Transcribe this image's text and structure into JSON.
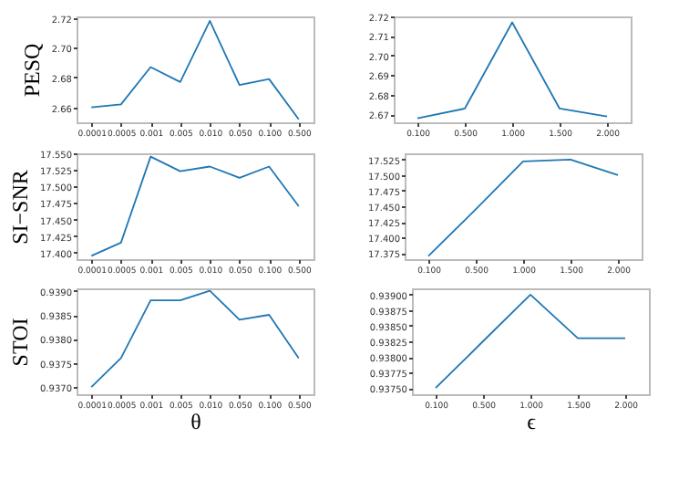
{
  "chart_data": [
    {
      "type": "line",
      "ylabel": "PESQ",
      "categories": [
        "0.0001",
        "0.0005",
        "0.001",
        "0.005",
        "0.010",
        "0.050",
        "0.100",
        "0.500"
      ],
      "series": [
        {
          "color": "#1f77b4",
          "values": [
            2.66,
            2.662,
            2.687,
            2.677,
            2.718,
            2.675,
            2.679,
            2.652
          ]
        }
      ],
      "ylim": [
        2.65,
        2.721
      ],
      "yticks": [
        2.66,
        2.68,
        {
          "value": 2.7,
          "label": "2.70"
        },
        2.72
      ],
      "grid": false
    },
    {
      "type": "line",
      "categories": [
        "0.100",
        "0.500",
        "1.000",
        "1.500",
        "2.000"
      ],
      "series": [
        {
          "color": "#1f77b4",
          "values": [
            2.668,
            2.673,
            2.717,
            2.673,
            2.669
          ]
        }
      ],
      "ylim": [
        2.666,
        2.72
      ],
      "yticks": [
        2.67,
        2.68,
        2.69,
        {
          "value": 2.7,
          "label": "2.70"
        },
        2.71,
        2.72
      ],
      "grid": false
    },
    {
      "type": "line",
      "ylabel": "SI−SNR",
      "categories": [
        "0.0001",
        "0.0005",
        "0.001",
        "0.005",
        "0.010",
        "0.050",
        "0.100",
        "0.500"
      ],
      "series": [
        {
          "color": "#1f77b4",
          "values": [
            17.395,
            17.415,
            17.545,
            17.523,
            17.53,
            17.513,
            17.53,
            17.47
          ]
        }
      ],
      "ylim": [
        17.39,
        17.55
      ],
      "yticks": [
        {
          "value": 17.4,
          "label": "17.400"
        },
        {
          "value": 17.425,
          "label": "17.425"
        },
        {
          "value": 17.45,
          "label": "17.450"
        },
        {
          "value": 17.475,
          "label": "17.475"
        },
        {
          "value": 17.5,
          "label": "17.500"
        },
        {
          "value": 17.525,
          "label": "17.525"
        },
        {
          "value": 17.55,
          "label": "17.550"
        }
      ],
      "grid": false
    },
    {
      "type": "line",
      "categories": [
        "0.100",
        "0.500",
        "1.000",
        "1.500",
        "2.000"
      ],
      "series": [
        {
          "color": "#1f77b4",
          "values": [
            17.37,
            17.445,
            17.522,
            17.525,
            17.5
          ]
        }
      ],
      "ylim": [
        17.365,
        17.535
      ],
      "yticks": [
        17.375,
        {
          "value": 17.4,
          "label": "17.400"
        },
        17.425,
        {
          "value": 17.45,
          "label": "17.450"
        },
        17.475,
        {
          "value": 17.5,
          "label": "17.500"
        },
        17.525
      ],
      "grid": false
    },
    {
      "type": "line",
      "ylabel": "STOI",
      "xlabel": "θ",
      "categories": [
        "0.0001",
        "0.0005",
        "0.001",
        "0.005",
        "0.010",
        "0.050",
        "0.100",
        "0.500"
      ],
      "series": [
        {
          "color": "#1f77b4",
          "values": [
            0.937,
            0.9376,
            0.9388,
            0.9388,
            0.939,
            0.9384,
            0.9385,
            0.9376
          ]
        }
      ],
      "ylim": [
        0.93685,
        0.93905
      ],
      "yticks": [
        {
          "value": 0.937,
          "label": "0.9370"
        },
        0.9375,
        {
          "value": 0.938,
          "label": "0.9380"
        },
        0.9385,
        {
          "value": 0.939,
          "label": "0.9390"
        }
      ],
      "grid": false
    },
    {
      "type": "line",
      "xlabel": "ϵ",
      "categories": [
        "0.100",
        "0.500",
        "1.000",
        "1.500",
        "2.000"
      ],
      "series": [
        {
          "color": "#1f77b4",
          "values": [
            0.9375,
            0.93825,
            0.939,
            0.9383,
            0.9383
          ]
        }
      ],
      "ylim": [
        0.9374,
        0.9391
      ],
      "yticks": [
        {
          "value": 0.9375,
          "label": "0.93750"
        },
        0.93775,
        {
          "value": 0.938,
          "label": "0.93800"
        },
        0.93825,
        {
          "value": 0.9385,
          "label": "0.93850"
        },
        0.93875,
        {
          "value": 0.939,
          "label": "0.93900"
        }
      ],
      "grid": false
    }
  ]
}
